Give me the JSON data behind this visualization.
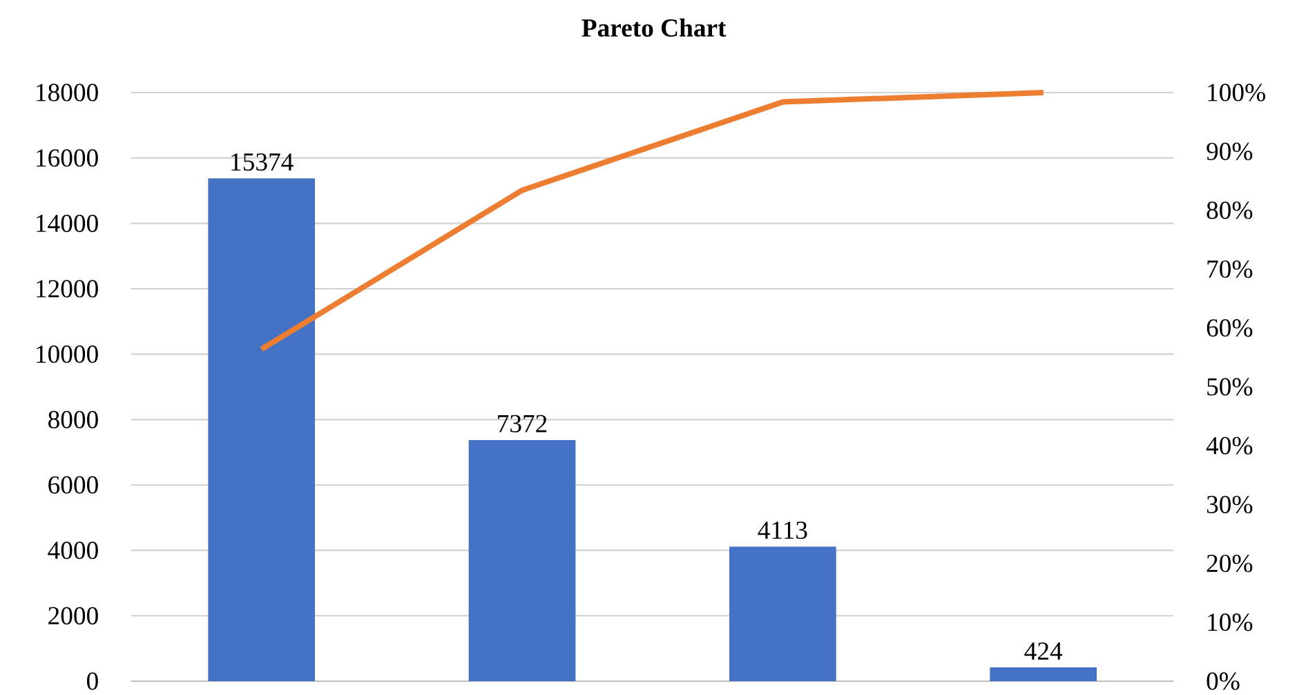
{
  "chart_data": {
    "type": "bar",
    "title": "Pareto Chart",
    "categories": [
      null,
      null,
      null,
      null
    ],
    "series": [
      {
        "color": "#4472c4",
        "values": [
          15374,
          7372,
          4113,
          424
        ],
        "value_labels": [
          "15374",
          "7372",
          "4113",
          "424"
        ]
      },
      {
        "type": "line",
        "axis": "y2",
        "color": "#ed7d31",
        "values": [
          56.4,
          83.4,
          98.4,
          100
        ]
      }
    ],
    "ylim": [
      0,
      18000
    ],
    "yticks": [
      0,
      2000,
      4000,
      6000,
      8000,
      10000,
      12000,
      14000,
      16000,
      18000
    ],
    "y2lim": [
      0,
      100
    ],
    "y2ticks": [
      {
        "value": 0,
        "label": "0%"
      },
      {
        "value": 10,
        "label": "10%"
      },
      {
        "value": 20,
        "label": "20%"
      },
      {
        "value": 30,
        "label": "30%"
      },
      {
        "value": 40,
        "label": "40%"
      },
      {
        "value": 50,
        "label": "50%"
      },
      {
        "value": 60,
        "label": "60%"
      },
      {
        "value": 70,
        "label": "70%"
      },
      {
        "value": 80,
        "label": "80%"
      },
      {
        "value": 90,
        "label": "90%"
      },
      {
        "value": 100,
        "label": "100%"
      }
    ],
    "grid": "y",
    "legend": false,
    "marker": "none",
    "line_style": "solid"
  }
}
